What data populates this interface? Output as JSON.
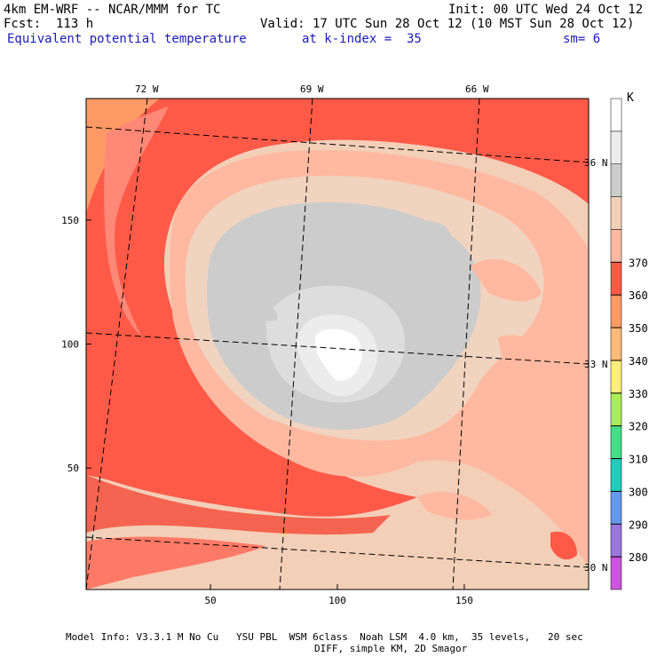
{
  "header": {
    "model_title": "4km EM-WRF -- NCAR/MMM for TC",
    "init": "Init: 00 UTC Wed 24 Oct 12",
    "forecast": "Fcst:  113 h",
    "valid": "Valid: 17 UTC Sun 28 Oct 12 (10 MST Sun 28 Oct 12)",
    "field_name": "Equivalent potential temperature",
    "level": "at k-index =  35",
    "smoothing": "sm= 6"
  },
  "map": {
    "grid_x_ticks": [
      "50",
      "100",
      "150"
    ],
    "grid_y_ticks": [
      "50",
      "100",
      "150"
    ],
    "longitude_labels": [
      "72 W",
      "69 W",
      "66 W"
    ],
    "latitude_labels": [
      "36 N",
      "33 N",
      "30 N"
    ],
    "grid_x_range": [
      1,
      199
    ],
    "grid_y_range": [
      1,
      199
    ],
    "storm_center_grid": [
      103,
      97
    ]
  },
  "colorbar": {
    "unit": "K",
    "levels": [
      "280",
      "290",
      "300",
      "310",
      "320",
      "330",
      "340",
      "350",
      "360",
      "370"
    ],
    "colors": [
      "#cc55dd",
      "#9977dd",
      "#6699ee",
      "#22ccbb",
      "#44dd88",
      "#aaee55",
      "#ffee77",
      "#ffbb77",
      "#ff9966",
      "#ff5a48",
      "#ffb9a0",
      "#f3cfb8",
      "#cccccc",
      "#ececec",
      "#ffffff"
    ]
  },
  "footer": {
    "line1": "Model Info: V3.3.1 M No Cu   YSU PBL  WSM 6class  Noah LSM  4.0 km,  35 levels,   20 sec",
    "line2": "DIFF, simple KM, 2D Smagor"
  }
}
